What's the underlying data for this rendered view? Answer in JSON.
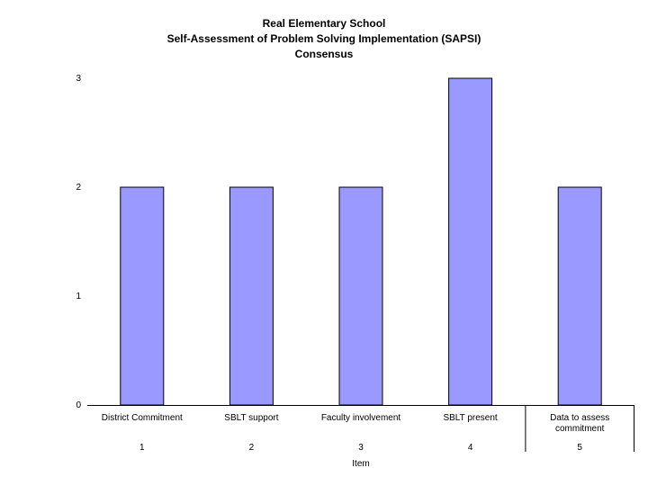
{
  "chart_data": {
    "type": "bar",
    "title_lines": [
      "Real Elementary School",
      "Self-Assessment of Problem Solving Implementation (SAPSI)",
      "Consensus"
    ],
    "categories": [
      "District Commitment",
      "SBLT support",
      "Faculty involvement",
      "SBLT present",
      "Data to assess commitment"
    ],
    "category_label_lines": [
      [
        "District Commitment"
      ],
      [
        "SBLT support"
      ],
      [
        "Faculty involvement"
      ],
      [
        "SBLT present"
      ],
      [
        "Data to assess",
        "commitment"
      ]
    ],
    "item_numbers": [
      "1",
      "2",
      "3",
      "4",
      "5"
    ],
    "values": [
      2,
      2,
      2,
      3,
      2
    ],
    "xlabel": "Item",
    "ylabel": "",
    "ylim": [
      0,
      3
    ],
    "yticks": [
      "0",
      "1",
      "2",
      "3"
    ],
    "grid": false,
    "bar_color": "#9999ff"
  }
}
